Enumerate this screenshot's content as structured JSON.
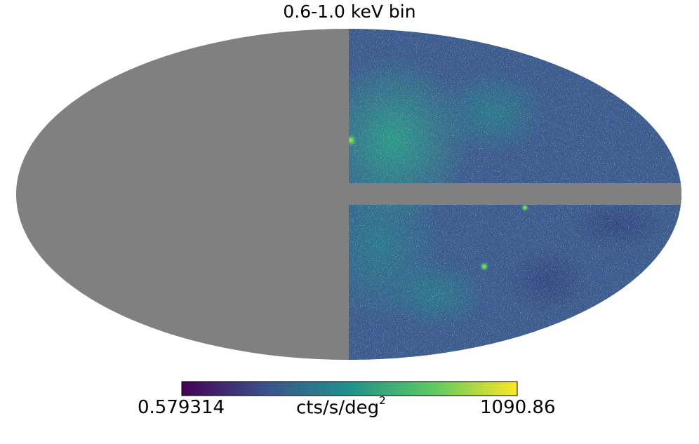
{
  "chart_data": {
    "type": "heatmap",
    "projection": "mollweide",
    "title": "0.6-1.0 keV bin",
    "colormap": "viridis",
    "colorbar": {
      "min_label": "0.579314",
      "max_label": "1090.86",
      "unit_text": "cts/s/deg",
      "unit_superscript": "2",
      "orientation": "horizontal"
    },
    "colors": {
      "masked": "#808080",
      "viridis_stops": [
        "#440154",
        "#3b528b",
        "#21918c",
        "#5ec962",
        "#fde725"
      ]
    },
    "masked_regions": [
      "left half of sky",
      "galactic plane strip on right half"
    ],
    "background_level_note_color": "#3c5c8f"
  }
}
